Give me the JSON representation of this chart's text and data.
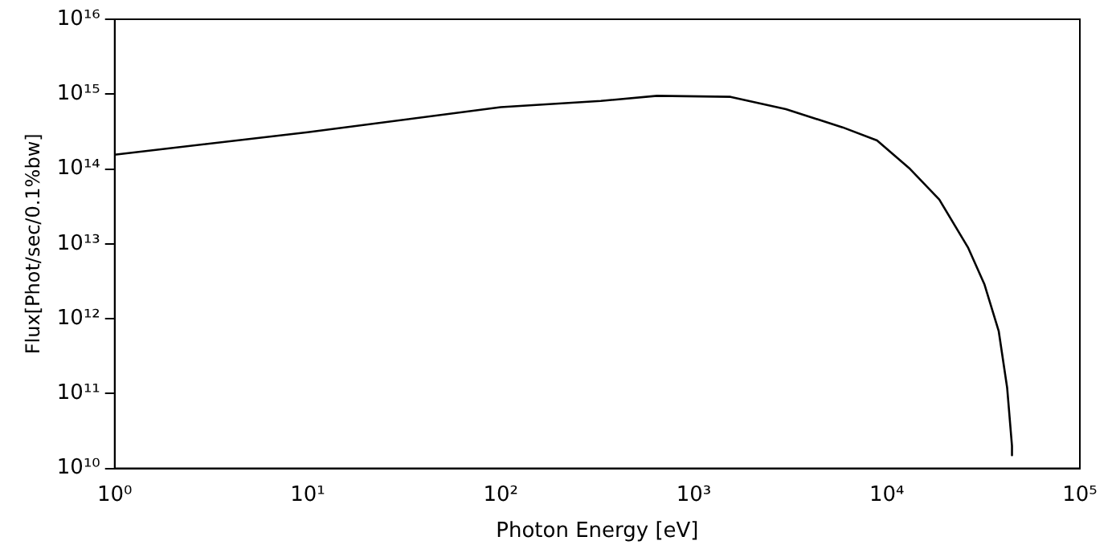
{
  "chart_data": {
    "type": "line",
    "xlabel": "Photon Energy [eV]",
    "ylabel": "Flux[Phot/sec/0.1%bw]",
    "log": "xy",
    "grid": false,
    "legend": false,
    "marker": "none",
    "line_style": "solid",
    "xlim": [
      1,
      100000
    ],
    "ylim": [
      10000000000.0,
      1e+16
    ],
    "xticks": [
      {
        "value": 1,
        "label": "10⁰"
      },
      {
        "value": 10,
        "label": "10¹"
      },
      {
        "value": 100,
        "label": "10²"
      },
      {
        "value": 1000,
        "label": "10³"
      },
      {
        "value": 10000,
        "label": "10⁴"
      },
      {
        "value": 100000,
        "label": "10⁵"
      }
    ],
    "yticks": [
      {
        "value": 10000000000.0,
        "label": "10¹⁰"
      },
      {
        "value": 100000000000.0,
        "label": "10¹¹"
      },
      {
        "value": 1000000000000.0,
        "label": "10¹²"
      },
      {
        "value": 10000000000000.0,
        "label": "10¹³"
      },
      {
        "value": 100000000000000.0,
        "label": "10¹⁴"
      },
      {
        "value": 1000000000000000.0,
        "label": "10¹⁵"
      },
      {
        "value": 1e+16,
        "label": "10¹⁶"
      }
    ],
    "series": [
      {
        "color": "#000000",
        "x": [
          1,
          10,
          100,
          330,
          645,
          1550,
          3000,
          5900,
          8900,
          13200,
          18700,
          26300,
          32000,
          38000,
          42000,
          44500,
          44500
        ],
        "values": [
          155000000000000.0,
          310000000000000.0,
          670000000000000.0,
          810000000000000.0,
          950000000000000.0,
          920000000000000.0,
          630000000000000.0,
          360000000000000.0,
          240000000000000.0,
          100000000000000.0,
          39000000000000.0,
          9000000000000.0,
          2900000000000.0,
          680000000000.0,
          120000000000.0,
          20000000000.0,
          15000000000.0
        ]
      }
    ]
  }
}
